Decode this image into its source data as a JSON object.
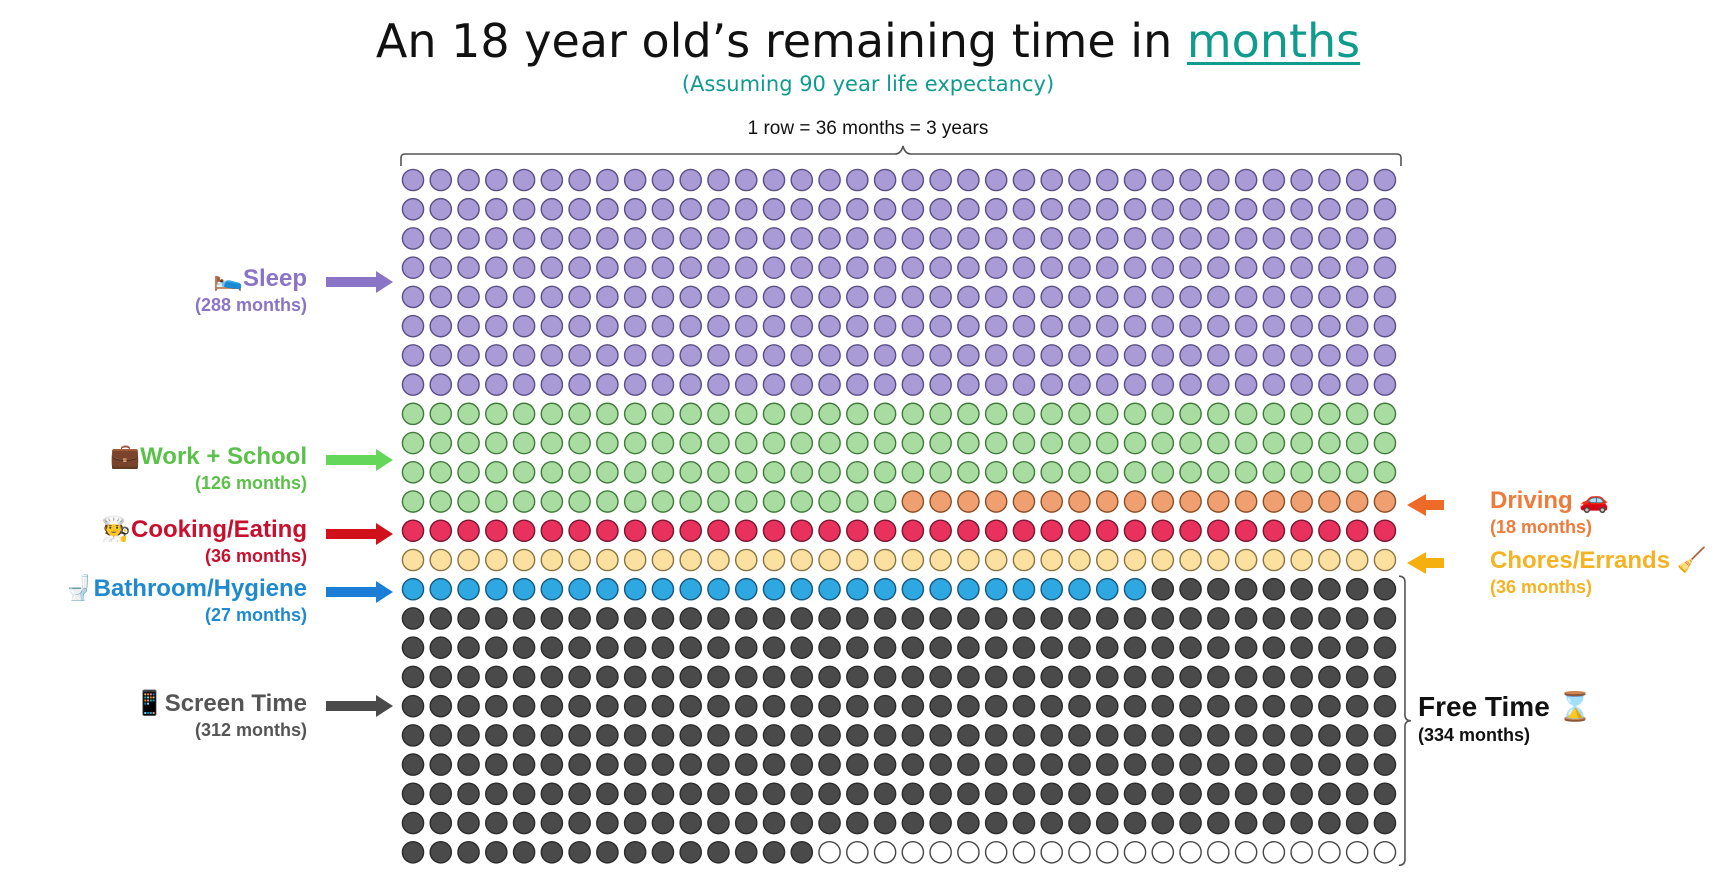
{
  "title": {
    "text": "An 18 year old’s remaining time in ",
    "accent": "months"
  },
  "subtitle": "(Assuming 90 year life expectancy)",
  "row_note": "1 row = 36 months = 3 years",
  "chart_data": {
    "type": "waffle",
    "columns": 36,
    "total_cells": 864,
    "categories": [
      {
        "name": "Sleep",
        "months": 288,
        "label": "(288 months)",
        "color": "#a99bd6",
        "stroke": "#5a4e86",
        "icon": "🛌"
      },
      {
        "name": "Work + School",
        "months": 126,
        "label": "(126 months)",
        "color": "#a8dca0",
        "stroke": "#3f7a3a",
        "icon": "💼"
      },
      {
        "name": "Driving",
        "months": 18,
        "label": "(18 months)",
        "color": "#f0a070",
        "stroke": "#8a4e25",
        "icon": "🚗"
      },
      {
        "name": "Cooking/Eating",
        "months": 36,
        "label": "(36 months)",
        "color": "#e8315c",
        "stroke": "#7a1530",
        "icon": "🧑‍🍳"
      },
      {
        "name": "Chores/Errands",
        "months": 36,
        "label": "(36 months)",
        "color": "#fbe0a0",
        "stroke": "#8a7440",
        "icon": "🧹"
      },
      {
        "name": "Bathroom/Hygiene",
        "months": 27,
        "label": "(27 months)",
        "color": "#2fa7e0",
        "stroke": "#145a80",
        "icon": "🚽"
      },
      {
        "name": "Screen Time",
        "months": 312,
        "label": "(312 months)",
        "color": "#4a4a4a",
        "stroke": "#2a2a2a",
        "icon": "📱"
      },
      {
        "name": "Unfilled",
        "months": 21,
        "label": "",
        "color": "#ffffff",
        "stroke": "#444444",
        "icon": ""
      }
    ],
    "free_time": {
      "name": "Free Time",
      "label": "(334 months)",
      "icon": "⌛"
    },
    "label_colors": {
      "Sleep": "#8a74c6",
      "Work + School": "#5cc14a",
      "Driving": "#ee7b3a",
      "Cooking/Eating": "#c8102e",
      "Chores/Errands": "#f5b324",
      "Bathroom/Hygiene": "#1f8ad0",
      "Screen Time": "#555555",
      "Free Time": "#111111"
    },
    "arrow_colors": {
      "Sleep": "#8a74c6",
      "Work + School": "#64d75a",
      "Driving": "#ee6a28",
      "Cooking/Eating": "#d0101a",
      "Chores/Errands": "#f5b010",
      "Bathroom/Hygiene": "#1a7ed6",
      "Screen Time": "#4a4a4a"
    }
  }
}
